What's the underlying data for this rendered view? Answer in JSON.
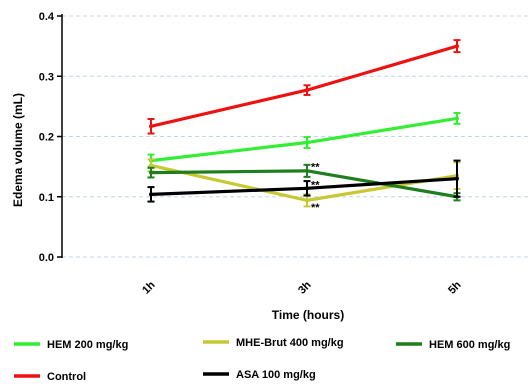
{
  "chart_data": {
    "type": "line",
    "title": "",
    "xlabel": "Time (hours)",
    "ylabel": "Edema volume (mL)",
    "categories": [
      "1h",
      "3h",
      "5h"
    ],
    "ylim": [
      0,
      0.4
    ],
    "yticks": [
      "0.0",
      "0.1",
      "0.2",
      "0.3",
      "0.4"
    ],
    "ytick_values": [
      0,
      0.1,
      0.2,
      0.3,
      0.4
    ],
    "grid": "horizontal-dashed",
    "legend_position": "bottom",
    "series": [
      {
        "name": "HEM 200 mg/kg",
        "color": "#33ee33",
        "values": [
          0.16,
          0.19,
          0.23
        ],
        "errors": [
          0.01,
          0.009,
          0.009
        ]
      },
      {
        "name": "MHE-Brut 400 mg/kg",
        "color": "#c8c832",
        "values": [
          0.152,
          0.094,
          0.135
        ],
        "errors": [
          0.01,
          0.01,
          0.022
        ]
      },
      {
        "name": "HEM 600 mg/kg",
        "color": "#1f7f1f",
        "values": [
          0.14,
          0.143,
          0.1
        ],
        "errors": [
          0.008,
          0.01,
          0.006
        ]
      },
      {
        "name": "Control",
        "color": "#ee1111",
        "values": [
          0.217,
          0.277,
          0.35
        ],
        "errors": [
          0.012,
          0.008,
          0.01
        ]
      },
      {
        "name": "ASA 100 mg/kg",
        "color": "#000000",
        "values": [
          0.104,
          0.114,
          0.13
        ],
        "errors": [
          0.012,
          0.012,
          0.03
        ]
      }
    ],
    "annotations": [
      {
        "text": "**",
        "x": "3h",
        "y": 0.15
      },
      {
        "text": "**",
        "x": "3h",
        "y": 0.12
      },
      {
        "text": "**",
        "x": "3h",
        "y": 0.083
      }
    ]
  }
}
